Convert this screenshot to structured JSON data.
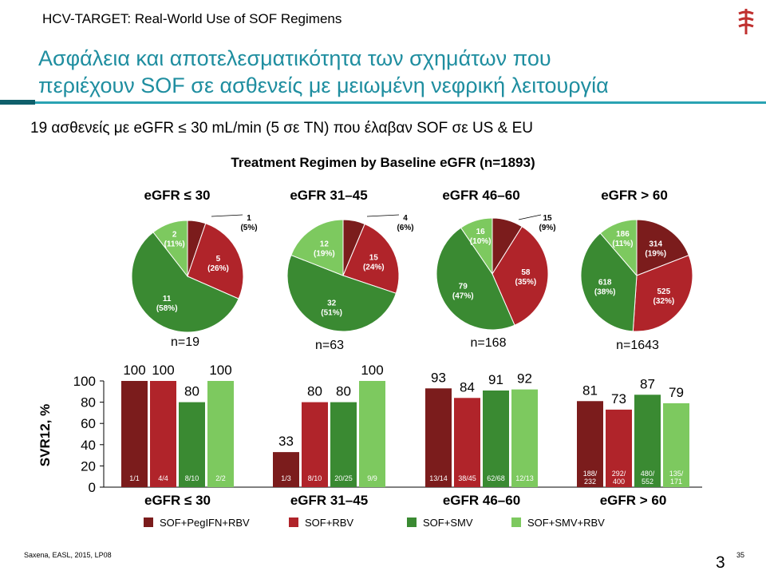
{
  "header": {
    "label": "HCV-TARGET: Real-World Use of SOF Regimens",
    "title_line1": "Ασφάλεια και αποτελεσματικότητα των σχημάτων που",
    "title_line2": "περιέχουν SOF σε ασθενείς με μειωμένη νεφρική λειτουργία",
    "subtitle": "19 ασθενείς με eGFR ≤ 30 mL/min (5 σε TN) που έλαβαν SOF σε US & EU"
  },
  "colors": {
    "title_teal": "#1f8ea0",
    "rule_dark": "#0f5f6b",
    "rule_teal": "#2aa3b3",
    "logo_red": "#c0302f",
    "series": [
      "#7b1c1c",
      "#b0242a",
      "#3a8a32",
      "#7dc95f"
    ]
  },
  "icons": {
    "logo": "caduceus-logo-icon"
  },
  "footer": {
    "citation": "Saxena, EASL, 2015, LP08",
    "slide_small": "35",
    "slide_big": "3"
  },
  "chart_data": [
    {
      "type": "pie",
      "title": "Treatment Regimen by Baseline eGFR (n=1893)",
      "series_names": [
        "SOF+PegIFN+RBV",
        "SOF+RBV",
        "SOF+SMV",
        "SOF+SMV+RBV"
      ],
      "groups": [
        {
          "label": "eGFR ≤ 30",
          "n_label": "n=19",
          "values": [
            1,
            5,
            11,
            2
          ],
          "pct_labels": [
            "(5%)",
            "(26%)",
            "(58%)",
            "(11%)"
          ]
        },
        {
          "label": "eGFR 31–45",
          "n_label": "n=63",
          "values": [
            4,
            15,
            32,
            12
          ],
          "pct_labels": [
            "(6%)",
            "(24%)",
            "(51%)",
            "(19%)"
          ]
        },
        {
          "label": "eGFR 46–60",
          "n_label": "n=168",
          "values": [
            15,
            58,
            79,
            16
          ],
          "pct_labels": [
            "(9%)",
            "(35%)",
            "(47%)",
            "(10%)"
          ]
        },
        {
          "label": "eGFR > 60",
          "n_label": "n=1643",
          "values": [
            314,
            525,
            618,
            186
          ],
          "pct_labels": [
            "(19%)",
            "(32%)",
            "(38%)",
            "(11%)"
          ]
        }
      ]
    },
    {
      "type": "bar",
      "ylabel": "SVR12, %",
      "ylim": [
        0,
        100
      ],
      "yticks": [
        0,
        20,
        40,
        60,
        80,
        100
      ],
      "categories": [
        "eGFR ≤ 30",
        "eGFR 31–45",
        "eGFR 46–60",
        "eGFR > 60"
      ],
      "series": [
        {
          "name": "SOF+PegIFN+RBV",
          "values": [
            100,
            33,
            93,
            81
          ],
          "fractions": [
            "1/1",
            "1/3",
            "13/14",
            "188/ 232"
          ]
        },
        {
          "name": "SOF+RBV",
          "values": [
            100,
            80,
            84,
            73
          ],
          "fractions": [
            "4/4",
            "8/10",
            "38/45",
            "292/ 400"
          ]
        },
        {
          "name": "SOF+SMV",
          "values": [
            80,
            80,
            91,
            87
          ],
          "fractions": [
            "8/10",
            "20/25",
            "62/68",
            "480/ 552"
          ]
        },
        {
          "name": "SOF+SMV+RBV",
          "values": [
            100,
            100,
            92,
            79
          ],
          "fractions": [
            "2/2",
            "9/9",
            "12/13",
            "135/ 171"
          ]
        }
      ],
      "legend": "bottom"
    }
  ]
}
